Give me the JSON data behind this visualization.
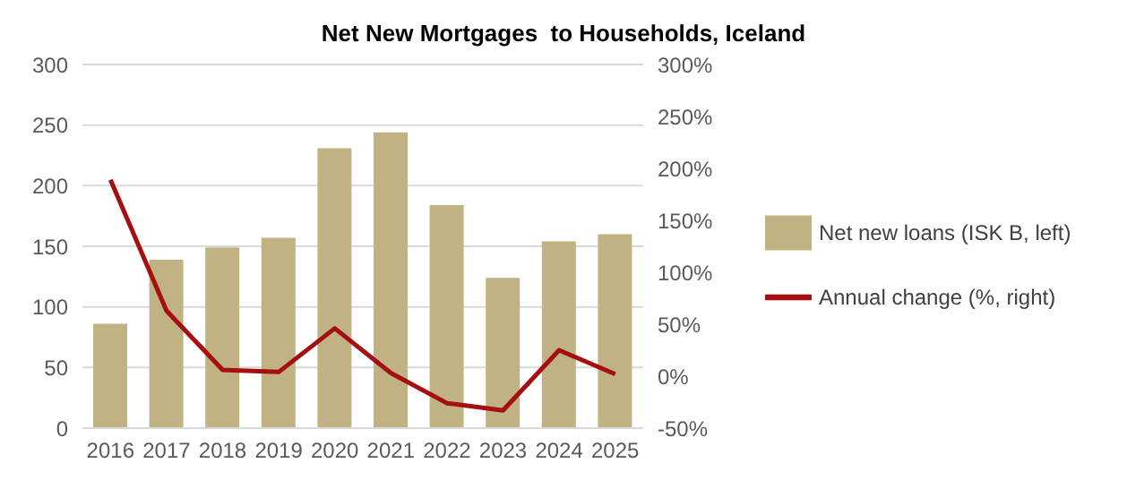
{
  "chart_data": {
    "type": "bar",
    "title": "Net New Mortgages  to Households, Iceland",
    "categories": [
      "2016",
      "2017",
      "2018",
      "2019",
      "2020",
      "2021",
      "2022",
      "2023",
      "2024",
      "2025"
    ],
    "series": [
      {
        "name": "Net new loans (ISK B, left)",
        "color": "#c0b283",
        "values": [
          86,
          139,
          149,
          157,
          231,
          244,
          184,
          124,
          154,
          160
        ]
      },
      {
        "name": "Annual change (%, right)",
        "type": "line",
        "axis": "y2",
        "color": "#a50f0f",
        "values": [
          189,
          63,
          6,
          4,
          46,
          3,
          -26,
          -33,
          25,
          2
        ]
      }
    ],
    "ylim": [
      0,
      300
    ],
    "yticks": [
      0,
      50,
      100,
      150,
      200,
      250,
      300
    ],
    "y2lim": [
      -50,
      300
    ],
    "y2ticks": [
      {
        "value": -50,
        "label": "-50%"
      },
      {
        "value": 0,
        "label": "0%"
      },
      {
        "value": 50,
        "label": "50%"
      },
      {
        "value": 100,
        "label": "100%"
      },
      {
        "value": 150,
        "label": "150%"
      },
      {
        "value": 200,
        "label": "200%"
      },
      {
        "value": 250,
        "label": "250%"
      },
      {
        "value": 300,
        "label": "300%"
      }
    ],
    "grid": "y",
    "legend": "right",
    "marker": "none",
    "line_style": "solid"
  }
}
